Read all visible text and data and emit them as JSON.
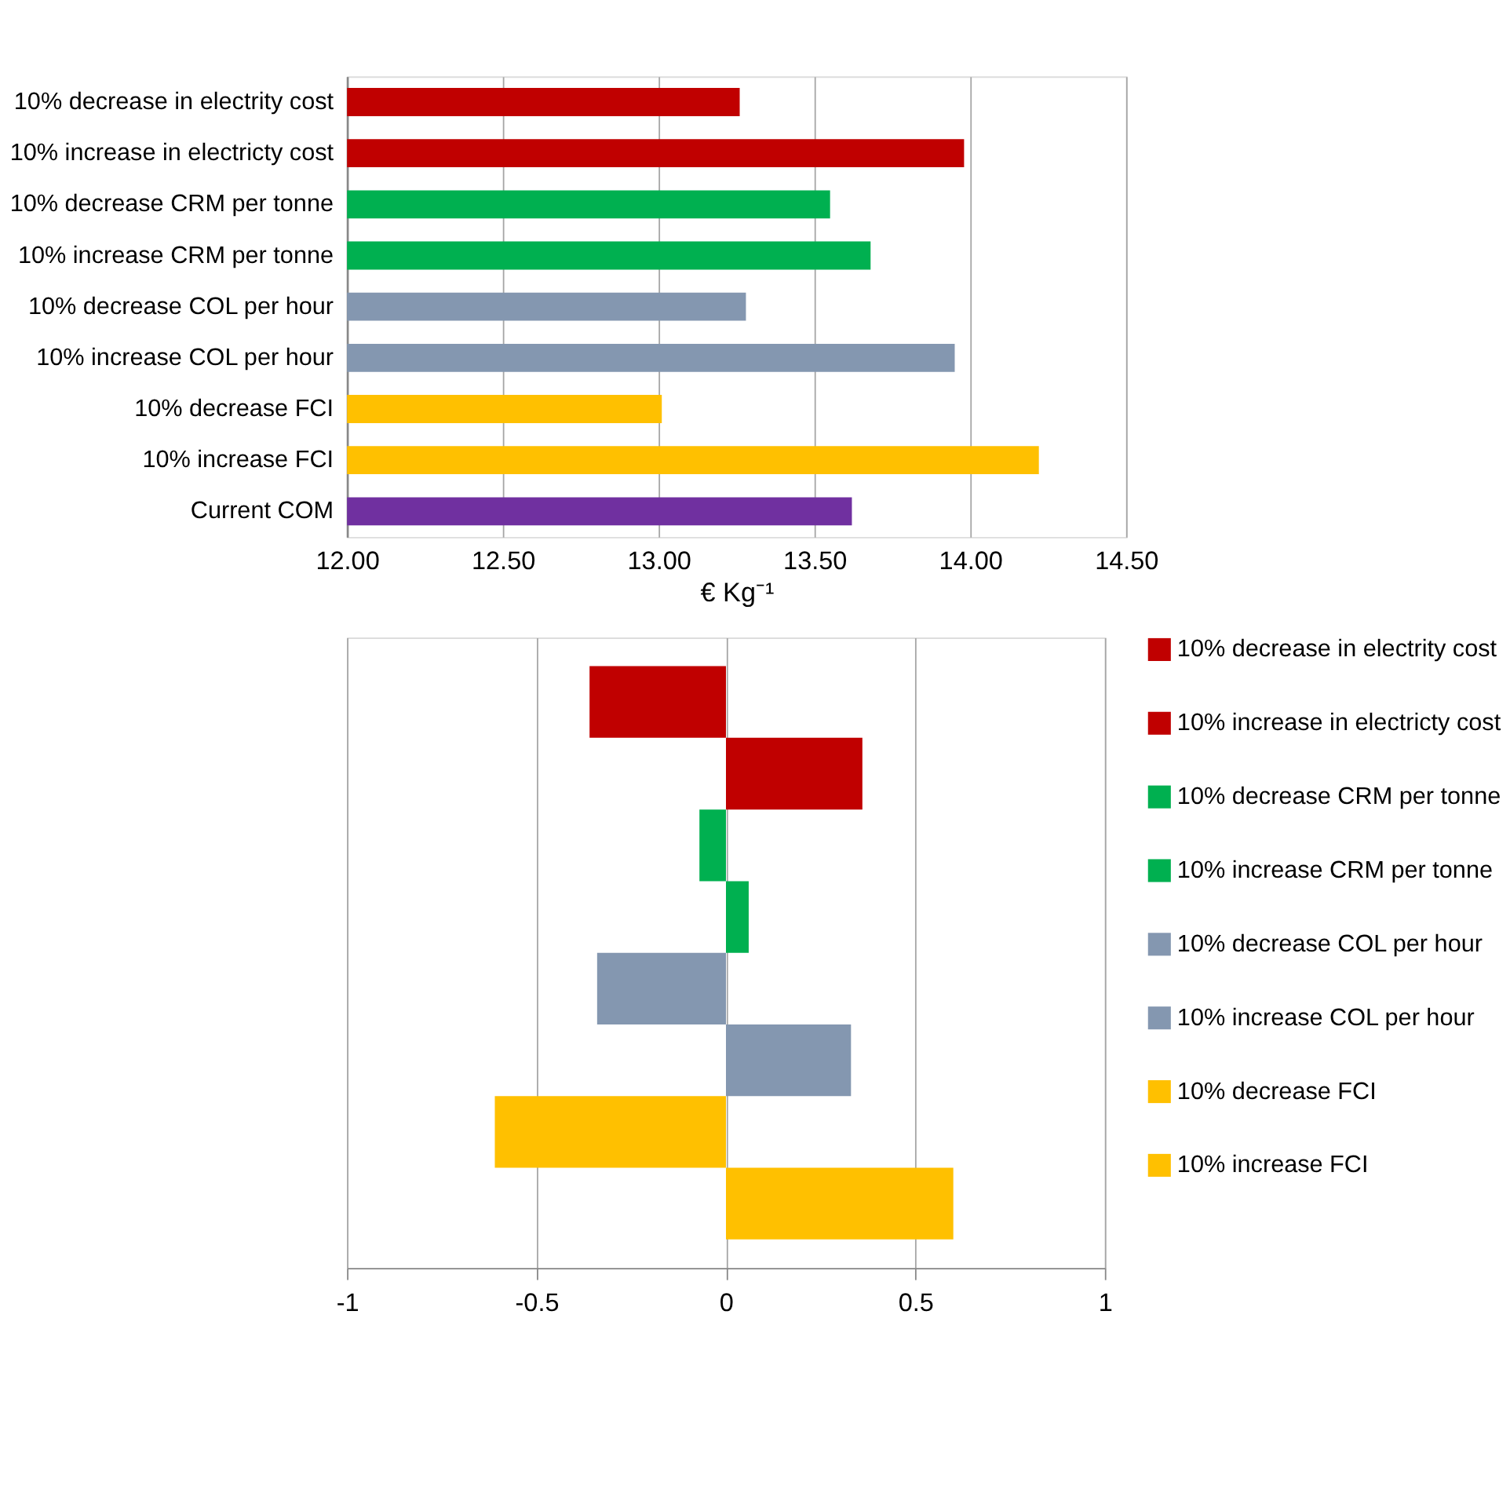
{
  "chart_data": [
    {
      "type": "bar",
      "orientation": "horizontal",
      "categories": [
        "10% decrease in electrity cost",
        "10% increase in electricty cost",
        "10% decrease CRM per tonne",
        "10% increase CRM per tonne",
        "10% decrease COL per hour",
        "10% increase COL per hour",
        "10% decrease FCI",
        "10% increase FCI",
        "Current COM"
      ],
      "values": [
        13.26,
        13.98,
        13.55,
        13.68,
        13.28,
        13.95,
        13.01,
        14.22,
        13.62
      ],
      "colors": [
        "#c00000",
        "#c00000",
        "#00b050",
        "#00b050",
        "#8497b0",
        "#8497b0",
        "#ffc000",
        "#ffc000",
        "#7030a0"
      ],
      "xlabel": "€ Kg⁻¹",
      "xlim": [
        12,
        14.5
      ],
      "xticks": [
        {
          "value": 12,
          "label": "12.00"
        },
        {
          "value": 12.5,
          "label": "12.50"
        },
        {
          "value": 13,
          "label": "13.00"
        },
        {
          "value": 13.5,
          "label": "13.50"
        },
        {
          "value": 14,
          "label": "14.00"
        },
        {
          "value": 14.5,
          "label": "14.50"
        }
      ],
      "grid": "x",
      "legend": false
    },
    {
      "type": "bar",
      "orientation": "horizontal",
      "categories": [
        null,
        null,
        null,
        null,
        null,
        null,
        null,
        null
      ],
      "series": [
        {
          "name": "10% decrease in electrity cost",
          "color": "#c00000",
          "values": [
            -0.36,
            null,
            null,
            null,
            null,
            null,
            null,
            null
          ]
        },
        {
          "name": "10% increase in electricty cost",
          "color": "#c00000",
          "values": [
            null,
            0.36,
            null,
            null,
            null,
            null,
            null,
            null
          ]
        },
        {
          "name": "10% decrease CRM per tonne",
          "color": "#00b050",
          "values": [
            null,
            null,
            -0.07,
            null,
            null,
            null,
            null,
            null
          ]
        },
        {
          "name": "10% increase CRM per tonne",
          "color": "#00b050",
          "values": [
            null,
            null,
            null,
            0.06,
            null,
            null,
            null,
            null
          ]
        },
        {
          "name": "10% decrease COL per hour",
          "color": "#8497b0",
          "values": [
            null,
            null,
            null,
            null,
            -0.34,
            null,
            null,
            null
          ]
        },
        {
          "name": "10% increase COL per hour",
          "color": "#8497b0",
          "values": [
            null,
            null,
            null,
            null,
            null,
            0.33,
            null,
            null
          ]
        },
        {
          "name": "10% decrease FCI",
          "color": "#ffc000",
          "values": [
            null,
            null,
            null,
            null,
            null,
            null,
            -0.61,
            null
          ]
        },
        {
          "name": "10% increase FCI",
          "color": "#ffc000",
          "values": [
            null,
            null,
            null,
            null,
            null,
            null,
            null,
            0.6
          ]
        }
      ],
      "xlim": [
        -1,
        1
      ],
      "xticks": [
        {
          "value": -1,
          "label": "-1"
        },
        {
          "value": -0.5,
          "label": "-0.5"
        },
        {
          "value": 0,
          "label": "0"
        },
        {
          "value": 0.5,
          "label": "0.5"
        },
        {
          "value": 1,
          "label": "1"
        }
      ],
      "grid": "x",
      "legend": "right",
      "tick_labels": "x"
    }
  ]
}
